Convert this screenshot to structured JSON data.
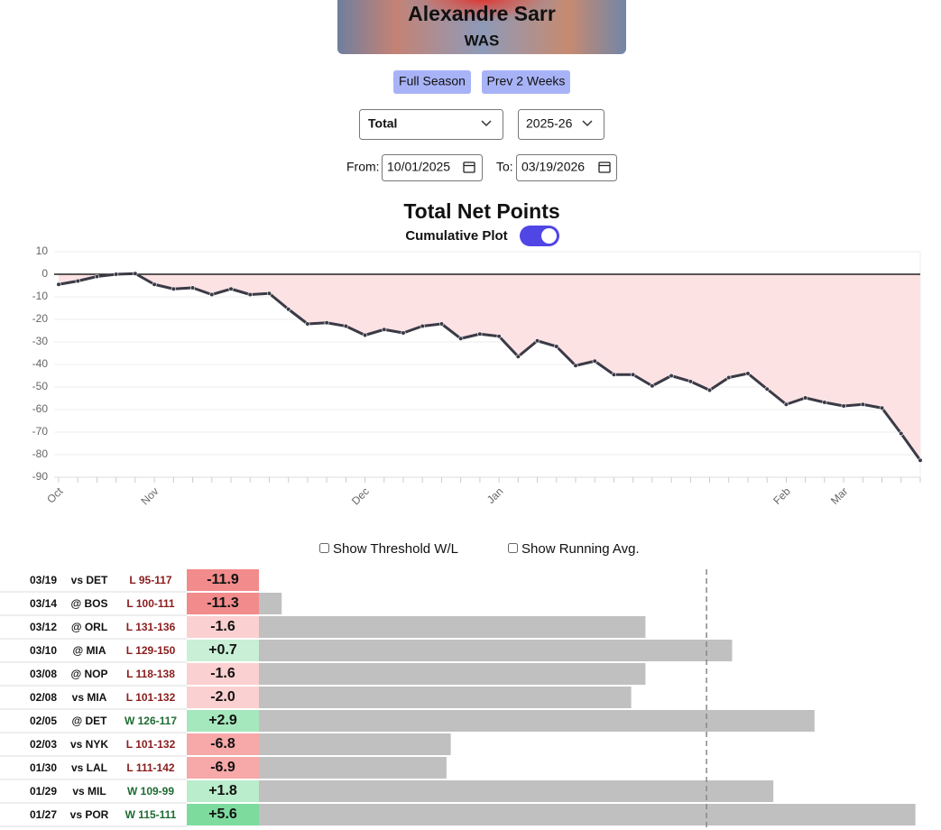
{
  "header": {
    "name": "Alexandre Sarr",
    "team": "WAS"
  },
  "buttons": [
    "Full Season",
    "Prev 2 Weeks"
  ],
  "selects": [
    "Total",
    "2025-26"
  ],
  "dates": {
    "from_label": "From:",
    "from": "10/01/2025",
    "to_label": "To:",
    "to": "03/19/2026"
  },
  "toggle_label": "Cumulative Plot",
  "chart_data": {
    "type": "line",
    "title": "Total Net Points",
    "categories": [
      "Oct",
      null,
      null,
      null,
      null,
      "Nov",
      null,
      null,
      null,
      null,
      null,
      null,
      null,
      null,
      null,
      null,
      "Dec",
      null,
      null,
      null,
      null,
      null,
      null,
      "Jan",
      null,
      null,
      null,
      null,
      null,
      null,
      null,
      null,
      null,
      null,
      null,
      null,
      null,
      null,
      "Feb",
      null,
      null,
      "Mar",
      null,
      null,
      null,
      null
    ],
    "values": [
      -4.5,
      -3,
      -1,
      0,
      0.3,
      -4.5,
      -6.5,
      -6,
      -9,
      -6.5,
      -9,
      -8.5,
      -15.5,
      -22,
      -21.5,
      -23,
      -27,
      -24.5,
      -26,
      -23,
      -22,
      -28.5,
      -26.5,
      -27.5,
      -36.5,
      -29.5,
      -32,
      -40.5,
      -38.5,
      -44.5,
      -44.5,
      -49.5,
      -45,
      -47.5,
      -51.4,
      -45.8,
      -44,
      -50.9,
      -57.7,
      -54.8,
      -56.8,
      -58.4,
      -57.7,
      -59.3,
      -70.6,
      -82.5
    ],
    "color": "#3a3a46",
    "fill": "#fde2e4",
    "ylim": [
      -90,
      10
    ],
    "yticks": [
      -90,
      -80,
      -70,
      -60,
      -50,
      -40,
      -30,
      -20,
      -10,
      0,
      10
    ],
    "grid": true
  },
  "checkboxes": [
    "Show Threshold W/L",
    "Show Running Avg."
  ],
  "table_threshold": 31.5,
  "rows": [
    {
      "date": "03/19",
      "opponent": "vs DET",
      "result": "L 95-117",
      "value": -11.9,
      "color": "#f28b8b",
      "minutes": 0
    },
    {
      "date": "03/14",
      "opponent": "@ BOS",
      "result": "L 100-111",
      "value": -11.3,
      "color": "#f28b8b",
      "minutes": 1.6
    },
    {
      "date": "03/12",
      "opponent": "@ ORL",
      "result": "L 131-136",
      "value": -1.6,
      "color": "#fbd0d0",
      "minutes": 27.2
    },
    {
      "date": "03/10",
      "opponent": "@ MIA",
      "result": "L 129-150",
      "value": 0.7,
      "value_label": "+0.7",
      "color": "#c9f0d6",
      "minutes": 33.3
    },
    {
      "date": "03/08",
      "opponent": "@ NOP",
      "result": "L 118-138",
      "value": -1.6,
      "color": "#fbd0d0",
      "minutes": 27.2
    },
    {
      "date": "02/08",
      "opponent": "vs MIA",
      "result": "L 101-132",
      "value": -2.0,
      "value_label": "-2.0",
      "color": "#fbd0d0",
      "minutes": 26.2
    },
    {
      "date": "02/05",
      "opponent": "@ DET",
      "result": "W 126-117",
      "value": 2.9,
      "value_label": "+2.9",
      "color": "#a6e8bd",
      "minutes": 39.1
    },
    {
      "date": "02/03",
      "opponent": "vs NYK",
      "result": "L 101-132",
      "value": -6.8,
      "color": "#f7a8a8",
      "minutes": 13.5
    },
    {
      "date": "01/30",
      "opponent": "vs LAL",
      "result": "L 111-142",
      "value": -6.9,
      "color": "#f7a8a8",
      "minutes": 13.2
    },
    {
      "date": "01/29",
      "opponent": "vs MIL",
      "result": "W 109-99",
      "value": 1.8,
      "value_label": "+1.8",
      "color": "#b9edcb",
      "minutes": 36.2
    },
    {
      "date": "01/27",
      "opponent": "vs POR",
      "result": "W 115-111",
      "value": 5.6,
      "value_label": "+5.6",
      "color": "#7ddb9e",
      "minutes": 46.2
    }
  ]
}
